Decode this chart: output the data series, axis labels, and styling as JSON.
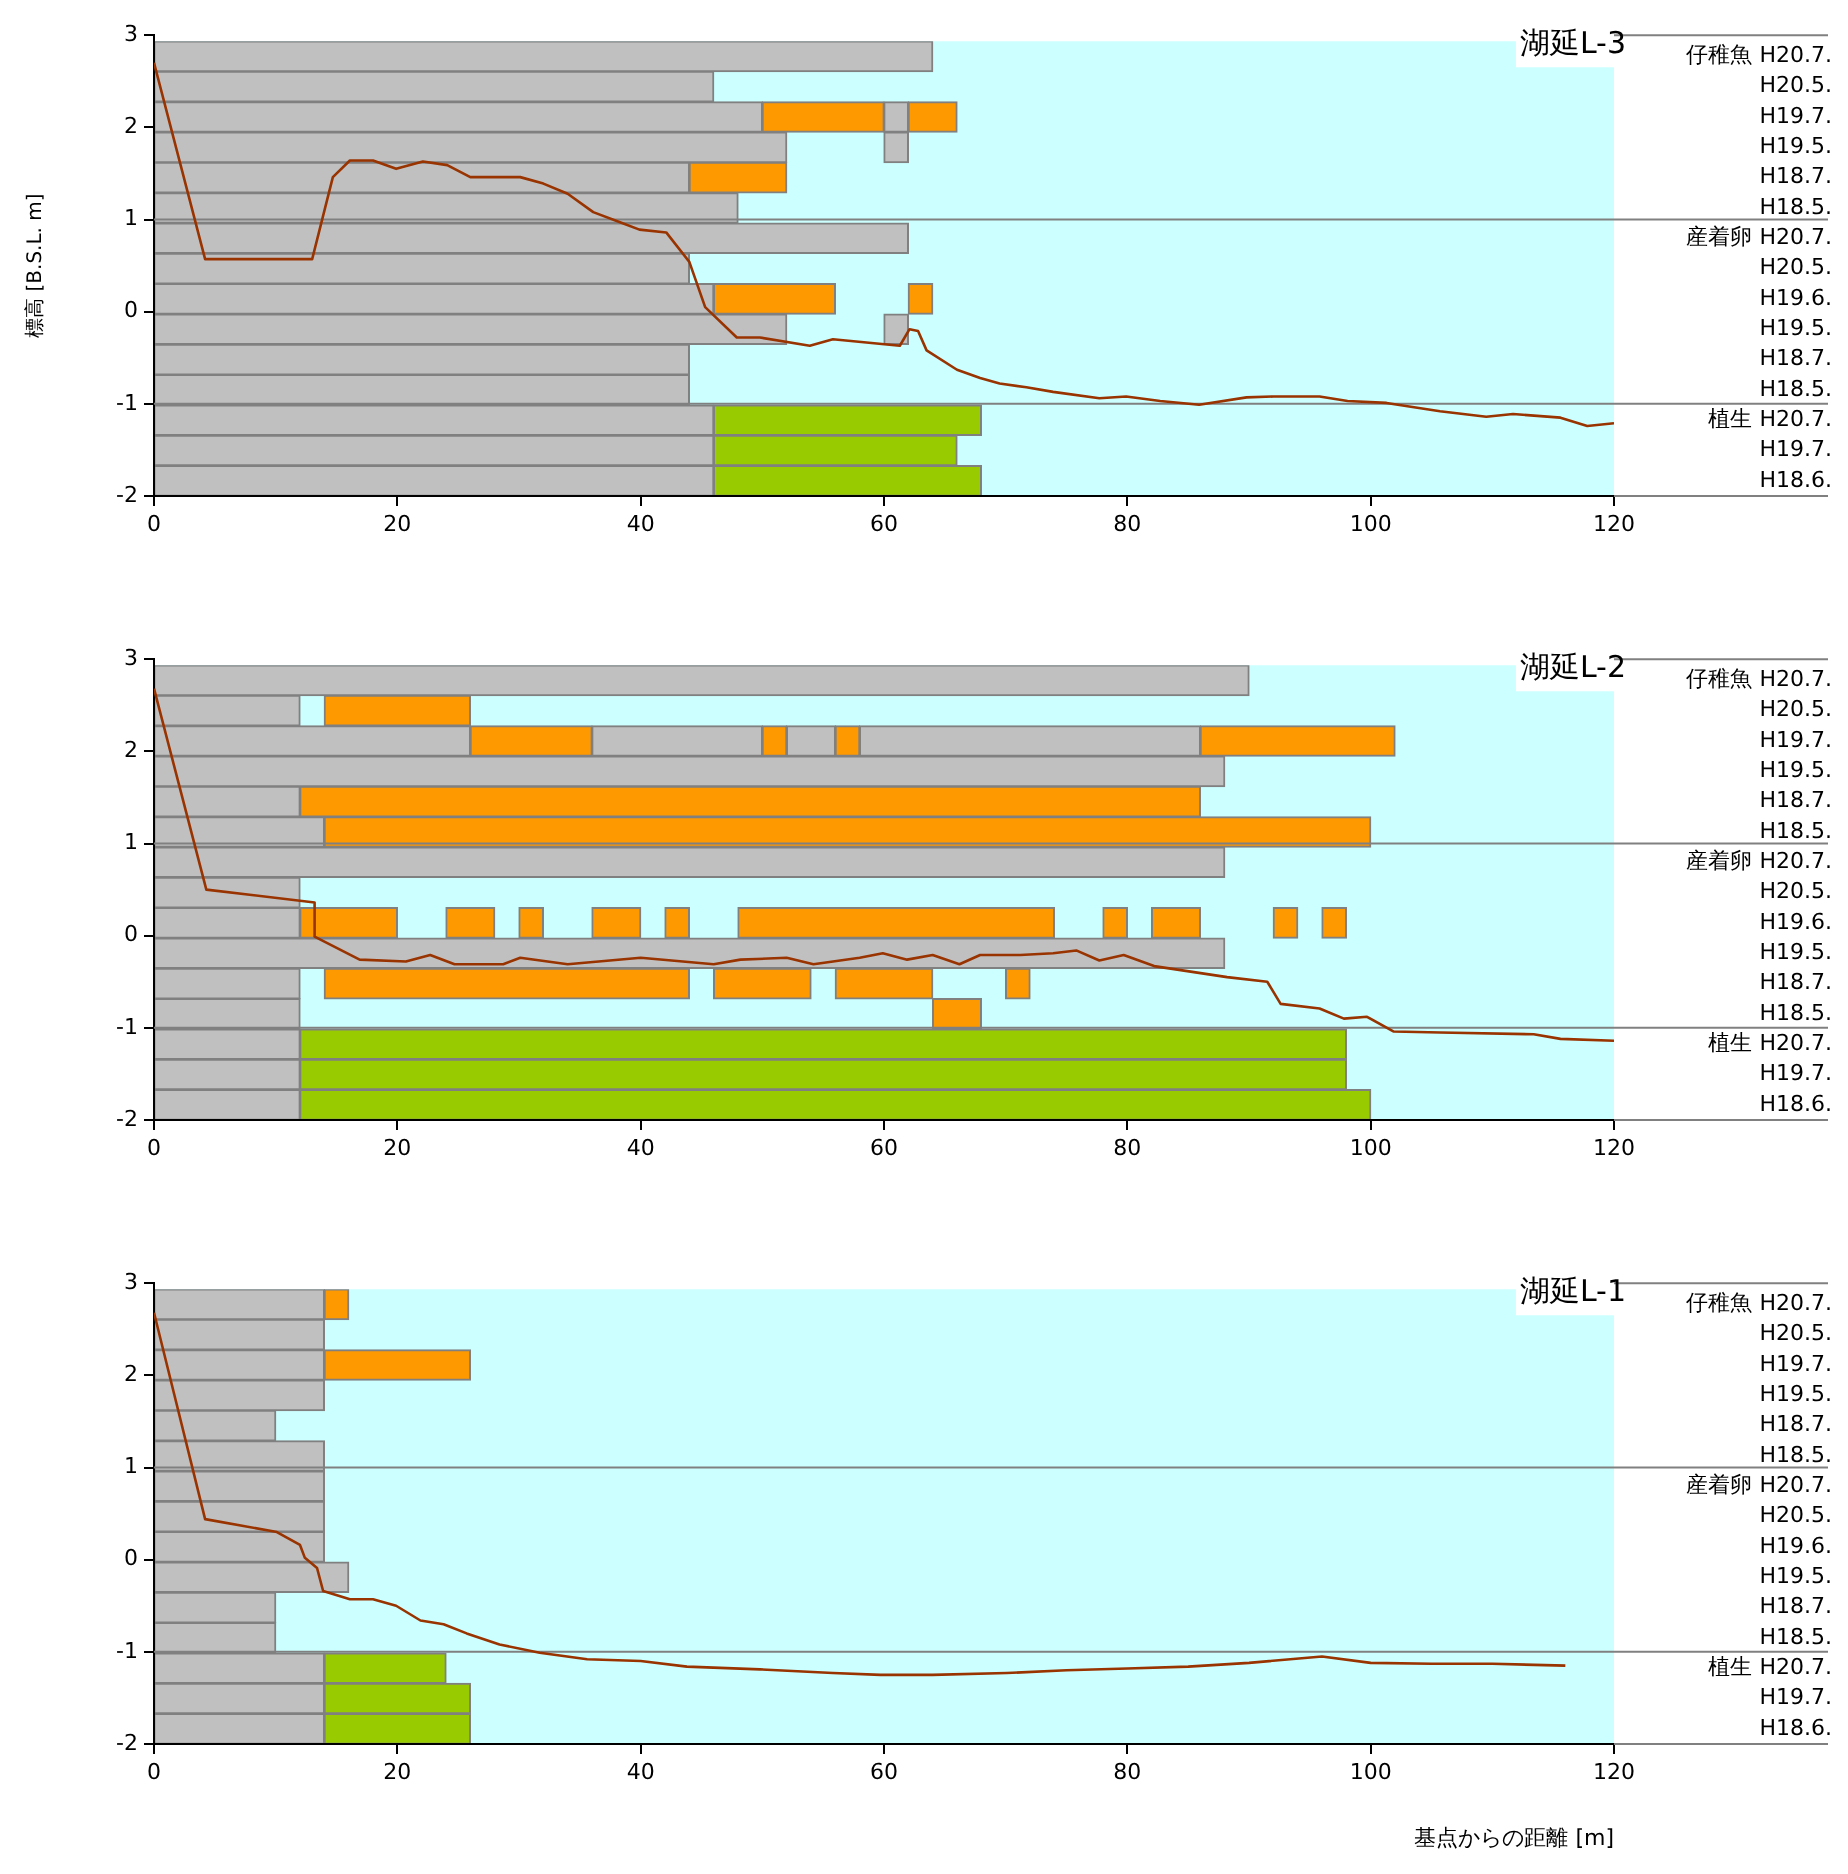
{
  "chart_data": [
    {
      "type": "line",
      "title": "湖延L-3",
      "ylabel": "標高 [B.S.L. m]",
      "xlim": [
        0,
        120
      ],
      "xticks": [
        0,
        20,
        40,
        60,
        80,
        100,
        120
      ],
      "ylim": [
        -2,
        3
      ],
      "yticks": [
        -2,
        -1,
        0,
        1,
        2,
        3
      ],
      "ref_lines": [
        {
          "axis": "y",
          "value": 1,
          "color": "#808080"
        },
        {
          "axis": "y",
          "value": -1,
          "color": "#808080"
        }
      ],
      "series": [
        {
          "color": "#993300",
          "x": [
            0,
            4.2,
            13,
            14.7,
            16.1,
            18,
            19.9,
            22.1,
            24.1,
            26,
            30.1,
            32,
            34,
            36.1,
            38.3,
            39.9,
            42.1,
            44,
            45.3,
            47.9,
            49.8,
            53.9,
            55.8,
            61.3,
            62.1,
            62.8,
            63.5,
            66,
            67.9,
            69.5,
            71.7,
            73.9,
            77.7,
            79.9,
            82.7,
            85.9,
            89.8,
            92,
            95.8,
            98.1,
            101.3,
            105.7,
            109.5,
            111.7,
            115.6,
            117.8,
            120
          ],
          "values": [
            2.7,
            0.57,
            0.57,
            1.46,
            1.64,
            1.64,
            1.55,
            1.63,
            1.59,
            1.46,
            1.46,
            1.39,
            1.28,
            1.08,
            0.97,
            0.89,
            0.86,
            0.54,
            0.05,
            -0.28,
            -0.28,
            -0.37,
            -0.3,
            -0.37,
            -0.19,
            -0.21,
            -0.42,
            -0.63,
            -0.72,
            -0.78,
            -0.82,
            -0.87,
            -0.94,
            -0.92,
            -0.97,
            -1.01,
            -0.93,
            -0.92,
            -0.92,
            -0.97,
            -0.99,
            -1.08,
            -1.14,
            -1.11,
            -1.15,
            -1.24,
            -1.21
          ]
        }
      ]
    },
    {
      "type": "bar",
      "orientation": "horizontal",
      "tick_labels": "y",
      "xlim": [
        0,
        120
      ],
      "categories": [
        "仔稚魚 H20.7.",
        "H20.5.",
        "H19.7.",
        "H19.5.",
        "H18.7.",
        "H18.5.",
        "産着卵 H20.7.",
        "H20.5.",
        "H19.6.",
        "H19.5.",
        "H18.7.",
        "H18.5.",
        "植生 H20.7.",
        "H19.7.",
        "H18.6."
      ],
      "series": [
        {
          "color": "#c0c0c0",
          "base": [
            0,
            0,
            0,
            0,
            0,
            0,
            0,
            0,
            0,
            0,
            0,
            0,
            0,
            0,
            0
          ],
          "values": [
            64,
            46,
            50,
            52,
            44,
            48,
            62,
            44,
            46,
            52,
            44,
            44,
            46,
            46,
            46
          ]
        },
        {
          "color": "#c0c0c0",
          "base": [
            null,
            null,
            60,
            60,
            null,
            null,
            null,
            null,
            null,
            60,
            null,
            null,
            null,
            null,
            null
          ],
          "values": [
            null,
            null,
            2,
            2,
            null,
            null,
            null,
            null,
            null,
            2,
            null,
            null,
            null,
            null,
            null
          ]
        },
        {
          "color": "#ff9900",
          "base": [
            null,
            null,
            50,
            null,
            44,
            null,
            null,
            null,
            46,
            null,
            null,
            null,
            null,
            null,
            null
          ],
          "values": [
            null,
            null,
            10,
            null,
            8,
            null,
            null,
            null,
            10,
            null,
            null,
            null,
            null,
            null,
            null
          ]
        },
        {
          "color": "#ff9900",
          "base": [
            null,
            null,
            62,
            null,
            null,
            null,
            null,
            null,
            62,
            null,
            null,
            null,
            null,
            null,
            null
          ],
          "values": [
            null,
            null,
            4,
            null,
            null,
            null,
            null,
            null,
            2,
            null,
            null,
            null,
            null,
            null,
            null
          ]
        },
        {
          "color": "#99cc00",
          "base": [
            null,
            null,
            null,
            null,
            null,
            null,
            null,
            null,
            null,
            null,
            null,
            null,
            46,
            46,
            46
          ],
          "values": [
            null,
            null,
            null,
            null,
            null,
            null,
            null,
            null,
            null,
            null,
            null,
            null,
            22,
            20,
            22
          ]
        }
      ]
    },
    {
      "type": "line",
      "title": "湖延L-2",
      "xlim": [
        0,
        120
      ],
      "xticks": [
        0,
        20,
        40,
        60,
        80,
        100,
        120
      ],
      "ylim": [
        -2,
        3
      ],
      "yticks": [
        -2,
        -1,
        0,
        1,
        2,
        3
      ],
      "ref_lines": [
        {
          "axis": "y",
          "value": 1,
          "color": "#808080"
        },
        {
          "axis": "y",
          "value": -1,
          "color": "#808080"
        }
      ],
      "series": [
        {
          "color": "#993300",
          "x": [
            0,
            4.3,
            13.2,
            13.2,
            16.9,
            20.7,
            22.7,
            24.7,
            28.7,
            30.1,
            34,
            40,
            46,
            48.2,
            52,
            54.2,
            58,
            59.9,
            61.9,
            64,
            66.2,
            67.9,
            71.2,
            73.9,
            75.8,
            77.7,
            79.7,
            82.2,
            88.2,
            91.5,
            92.6,
            95.8,
            97.8,
            99.7,
            101.9,
            105.7,
            113.4,
            115.6,
            120
          ],
          "values": [
            2.68,
            0.5,
            0.36,
            -0.01,
            -0.26,
            -0.28,
            -0.21,
            -0.31,
            -0.31,
            -0.24,
            -0.31,
            -0.24,
            -0.31,
            -0.26,
            -0.24,
            -0.31,
            -0.24,
            -0.19,
            -0.26,
            -0.21,
            -0.31,
            -0.21,
            -0.21,
            -0.19,
            -0.16,
            -0.27,
            -0.21,
            -0.33,
            -0.45,
            -0.5,
            -0.74,
            -0.79,
            -0.9,
            -0.88,
            -1.04,
            -1.05,
            -1.07,
            -1.12,
            -1.14
          ]
        }
      ]
    },
    {
      "type": "bar",
      "orientation": "horizontal",
      "tick_labels": "y",
      "xlim": [
        0,
        120
      ],
      "categories": [
        "仔稚魚 H20.7.",
        "H20.5.",
        "H19.7.",
        "H19.5.",
        "H18.7.",
        "H18.5.",
        "産着卵 H20.7.",
        "H20.5.",
        "H19.6.",
        "H19.5.",
        "H18.7.",
        "H18.5.",
        "植生 H20.7.",
        "H19.7.",
        "H18.6."
      ],
      "series": [
        {
          "color": "#c0c0c0",
          "base": [
            0,
            0,
            0,
            0,
            0,
            0,
            0,
            0,
            0,
            0,
            0,
            0,
            0,
            0,
            0
          ],
          "values": [
            90,
            12,
            26,
            88,
            12,
            14,
            88,
            12,
            12,
            88,
            12,
            12,
            12,
            12,
            12
          ]
        },
        {
          "color": "#c0c0c0",
          "base": [
            null,
            null,
            36,
            null,
            null,
            null,
            null,
            null,
            null,
            null,
            null,
            null,
            null,
            null,
            null
          ],
          "values": [
            null,
            null,
            14,
            null,
            null,
            null,
            null,
            null,
            null,
            null,
            null,
            null,
            null,
            null,
            null
          ]
        },
        {
          "color": "#c0c0c0",
          "base": [
            null,
            null,
            52,
            null,
            null,
            null,
            null,
            null,
            null,
            null,
            null,
            null,
            null,
            null,
            null
          ],
          "values": [
            null,
            null,
            4,
            null,
            null,
            null,
            null,
            null,
            null,
            null,
            null,
            null,
            null,
            null,
            null
          ]
        },
        {
          "color": "#c0c0c0",
          "base": [
            null,
            null,
            58,
            null,
            null,
            null,
            null,
            null,
            null,
            null,
            null,
            null,
            null,
            null,
            null
          ],
          "values": [
            null,
            null,
            28,
            null,
            null,
            null,
            null,
            null,
            null,
            null,
            null,
            null,
            null,
            null,
            null
          ]
        },
        {
          "color": "#ff9900",
          "base": [
            null,
            14,
            26,
            null,
            12,
            14,
            null,
            null,
            12,
            null,
            14,
            64,
            null,
            null,
            null
          ],
          "values": [
            null,
            12,
            10,
            null,
            74,
            86,
            null,
            null,
            8,
            null,
            30,
            4,
            null,
            null,
            null
          ]
        },
        {
          "color": "#ff9900",
          "base": [
            null,
            null,
            50,
            null,
            null,
            null,
            null,
            null,
            24,
            null,
            46,
            null,
            null,
            null,
            null
          ],
          "values": [
            null,
            null,
            2,
            null,
            null,
            null,
            null,
            null,
            4,
            null,
            8,
            null,
            null,
            null,
            null
          ]
        },
        {
          "color": "#ff9900",
          "base": [
            null,
            null,
            56,
            null,
            null,
            null,
            null,
            null,
            30,
            null,
            56,
            null,
            null,
            null,
            null
          ],
          "values": [
            null,
            null,
            2,
            null,
            null,
            null,
            null,
            null,
            2,
            null,
            8,
            null,
            null,
            null,
            null
          ]
        },
        {
          "color": "#ff9900",
          "base": [
            null,
            null,
            86,
            null,
            null,
            null,
            null,
            null,
            36,
            null,
            70,
            null,
            null,
            null,
            null
          ],
          "values": [
            null,
            null,
            16,
            null,
            null,
            null,
            null,
            null,
            4,
            null,
            2,
            null,
            null,
            null,
            null
          ]
        },
        {
          "color": "#ff9900",
          "base": [
            null,
            null,
            null,
            null,
            null,
            null,
            null,
            null,
            42,
            null,
            null,
            null,
            null,
            null,
            null
          ],
          "values": [
            null,
            null,
            null,
            null,
            null,
            null,
            null,
            null,
            2,
            null,
            null,
            null,
            null,
            null,
            null
          ]
        },
        {
          "color": "#ff9900",
          "base": [
            null,
            null,
            null,
            null,
            null,
            null,
            null,
            null,
            48,
            null,
            null,
            null,
            null,
            null,
            null
          ],
          "values": [
            null,
            null,
            null,
            null,
            null,
            null,
            null,
            null,
            26,
            null,
            null,
            null,
            null,
            null,
            null
          ]
        },
        {
          "color": "#ff9900",
          "base": [
            null,
            null,
            null,
            null,
            null,
            null,
            null,
            null,
            78,
            null,
            null,
            null,
            null,
            null,
            null
          ],
          "values": [
            null,
            null,
            null,
            null,
            null,
            null,
            null,
            null,
            2,
            null,
            null,
            null,
            null,
            null,
            null
          ]
        },
        {
          "color": "#ff9900",
          "base": [
            null,
            null,
            null,
            null,
            null,
            null,
            null,
            null,
            82,
            null,
            null,
            null,
            null,
            null,
            null
          ],
          "values": [
            null,
            null,
            null,
            null,
            null,
            null,
            null,
            null,
            4,
            null,
            null,
            null,
            null,
            null,
            null
          ]
        },
        {
          "color": "#ff9900",
          "base": [
            null,
            null,
            null,
            null,
            null,
            null,
            null,
            null,
            92,
            null,
            null,
            null,
            null,
            null,
            null
          ],
          "values": [
            null,
            null,
            null,
            null,
            null,
            null,
            null,
            null,
            2,
            null,
            null,
            null,
            null,
            null,
            null
          ]
        },
        {
          "color": "#ff9900",
          "base": [
            null,
            null,
            null,
            null,
            null,
            null,
            null,
            null,
            96,
            null,
            null,
            null,
            null,
            null,
            null
          ],
          "values": [
            null,
            null,
            null,
            null,
            null,
            null,
            null,
            null,
            2,
            null,
            null,
            null,
            null,
            null,
            null
          ]
        },
        {
          "color": "#99cc00",
          "base": [
            null,
            null,
            null,
            null,
            null,
            null,
            null,
            null,
            null,
            null,
            null,
            null,
            12,
            12,
            12
          ],
          "values": [
            null,
            null,
            null,
            null,
            null,
            null,
            null,
            null,
            null,
            null,
            null,
            null,
            86,
            86,
            88
          ]
        }
      ]
    },
    {
      "type": "line",
      "title": "湖延L-1",
      "xlabel": "基点からの距離 [m]",
      "xlim": [
        0,
        120
      ],
      "xticks": [
        0,
        20,
        40,
        60,
        80,
        100,
        120
      ],
      "ylim": [
        -2,
        3
      ],
      "yticks": [
        -2,
        -1,
        0,
        1,
        2,
        3
      ],
      "ref_lines": [
        {
          "axis": "y",
          "value": 1,
          "color": "#808080"
        },
        {
          "axis": "y",
          "value": -1,
          "color": "#808080"
        }
      ],
      "series": [
        {
          "color": "#993300",
          "x": [
            0,
            4.2,
            10.1,
            12,
            12.4,
            13.4,
            13.9,
            16.1,
            18,
            19.9,
            21.9,
            23.8,
            25.7,
            28.4,
            31.7,
            35.6,
            40,
            43.8,
            49.8,
            55.8,
            59.7,
            64,
            70.1,
            75,
            80,
            85,
            90,
            96,
            100,
            105,
            110,
            116
          ],
          "values": [
            2.68,
            0.44,
            0.3,
            0.16,
            0.02,
            -0.09,
            -0.34,
            -0.43,
            -0.43,
            -0.5,
            -0.66,
            -0.7,
            -0.8,
            -0.92,
            -1.01,
            -1.08,
            -1.1,
            -1.16,
            -1.19,
            -1.23,
            -1.25,
            -1.25,
            -1.23,
            -1.2,
            -1.18,
            -1.16,
            -1.12,
            -1.05,
            -1.12,
            -1.13,
            -1.13,
            -1.15
          ]
        }
      ]
    },
    {
      "type": "bar",
      "orientation": "horizontal",
      "tick_labels": "y",
      "xlim": [
        0,
        120
      ],
      "categories": [
        "仔稚魚 H20.7.",
        "H20.5.",
        "H19.7.",
        "H19.5.",
        "H18.7.",
        "H18.5.",
        "産着卵 H20.7.",
        "H20.5.",
        "H19.6.",
        "H19.5.",
        "H18.7.",
        "H18.5.",
        "植生 H20.7.",
        "H19.7.",
        "H18.6."
      ],
      "series": [
        {
          "color": "#c0c0c0",
          "base": [
            0,
            0,
            0,
            0,
            0,
            0,
            0,
            0,
            0,
            0,
            0,
            0,
            0,
            0,
            0
          ],
          "values": [
            14,
            14,
            14,
            14,
            10,
            14,
            14,
            14,
            14,
            16,
            10,
            10,
            14,
            14,
            14
          ]
        },
        {
          "color": "#ff9900",
          "base": [
            14,
            null,
            14,
            null,
            null,
            null,
            null,
            null,
            null,
            null,
            null,
            null,
            null,
            null,
            null
          ],
          "values": [
            2,
            null,
            12,
            null,
            null,
            null,
            null,
            null,
            null,
            null,
            null,
            null,
            null,
            null,
            null
          ]
        },
        {
          "color": "#99cc00",
          "base": [
            null,
            null,
            null,
            null,
            null,
            null,
            null,
            null,
            null,
            null,
            null,
            null,
            14,
            14,
            14
          ],
          "values": [
            null,
            null,
            null,
            null,
            null,
            null,
            null,
            null,
            null,
            null,
            null,
            null,
            10,
            12,
            12
          ]
        }
      ]
    }
  ]
}
